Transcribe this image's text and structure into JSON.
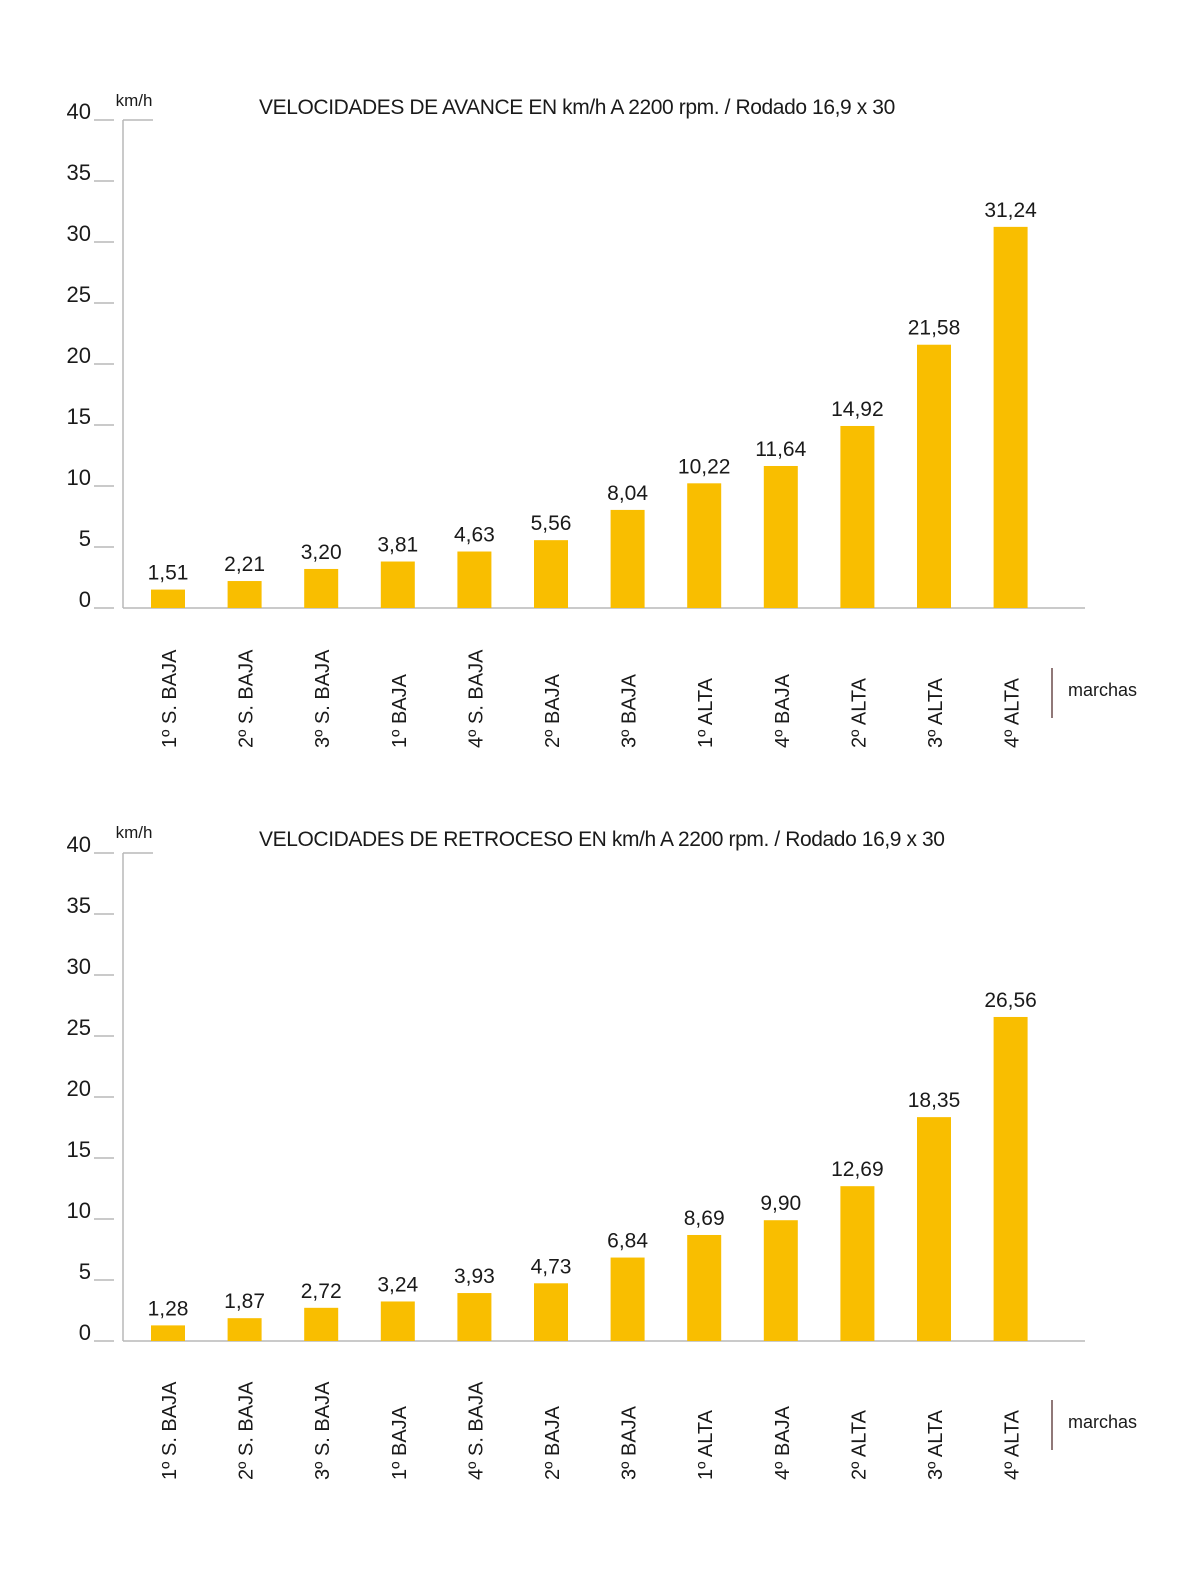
{
  "colors": {
    "bar": "#F9BE00",
    "axis": "#b8b8b8",
    "separator": "#6b4a4a",
    "text": "#1a1a1a"
  },
  "chart_data": [
    {
      "type": "bar",
      "title": "VELOCIDADES DE AVANCE EN km/h A 2200 rpm. / Rodado 16,9 x 30",
      "ylabel": "km/h",
      "xlabel": "marchas",
      "ylim": [
        0,
        40
      ],
      "yticks": [
        "0",
        "5",
        "10",
        "15",
        "20",
        "25",
        "30",
        "35",
        "40"
      ],
      "categories": [
        "1º S. BAJA",
        "2º S. BAJA",
        "3º S. BAJA",
        "1º BAJA",
        "4º S. BAJA",
        "2º BAJA",
        "3º BAJA",
        "1º ALTA",
        "4º BAJA",
        "2º ALTA",
        "3º ALTA",
        "4º ALTA"
      ],
      "values": [
        1.51,
        2.21,
        3.2,
        3.81,
        4.63,
        5.56,
        8.04,
        10.22,
        11.64,
        14.92,
        21.58,
        31.24
      ],
      "value_labels": [
        "1,51",
        "2,21",
        "3,20",
        "3,81",
        "4,63",
        "5,56",
        "8,04",
        "10,22",
        "11,64",
        "14,92",
        "21,58",
        "31,24"
      ]
    },
    {
      "type": "bar",
      "title": "VELOCIDADES DE RETROCESO EN km/h A 2200 rpm. / Rodado 16,9 x 30",
      "ylabel": "km/h",
      "xlabel": "marchas",
      "ylim": [
        0,
        40
      ],
      "yticks": [
        "0",
        "5",
        "10",
        "15",
        "20",
        "25",
        "30",
        "35",
        "40"
      ],
      "categories": [
        "1º S. BAJA",
        "2º S. BAJA",
        "3º S. BAJA",
        "1º BAJA",
        "4º S. BAJA",
        "2º BAJA",
        "3º BAJA",
        "1º ALTA",
        "4º BAJA",
        "2º ALTA",
        "3º ALTA",
        "4º ALTA"
      ],
      "values": [
        1.28,
        1.87,
        2.72,
        3.24,
        3.93,
        4.73,
        6.84,
        8.69,
        9.9,
        12.69,
        18.35,
        26.56
      ],
      "value_labels": [
        "1,28",
        "1,87",
        "2,72",
        "3,24",
        "3,93",
        "4,73",
        "6,84",
        "8,69",
        "9,90",
        "12,69",
        "18,35",
        "26,56"
      ]
    }
  ]
}
